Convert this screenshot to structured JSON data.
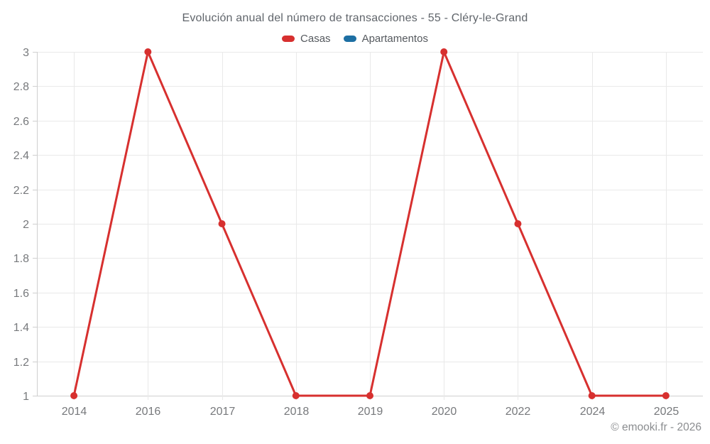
{
  "chart_data": {
    "type": "line",
    "title": "Evolución anual del número de transacciones - 55 - Cléry-le-Grand",
    "categories": [
      "2014",
      "2016",
      "2017",
      "2018",
      "2019",
      "2020",
      "2022",
      "2024",
      "2025"
    ],
    "series": [
      {
        "name": "Casas",
        "color": "#d7302f",
        "values": [
          1,
          3,
          2,
          1,
          1,
          3,
          2,
          1,
          1
        ]
      },
      {
        "name": "Apartamentos",
        "color": "#1d6fa3",
        "values": []
      }
    ],
    "ylim": [
      1,
      3
    ],
    "yticks": [
      {
        "v": 1,
        "label": "1"
      },
      {
        "v": 1.2,
        "label": "1.2"
      },
      {
        "v": 1.4,
        "label": "1.4"
      },
      {
        "v": 1.6,
        "label": "1.6"
      },
      {
        "v": 1.8,
        "label": "1.8"
      },
      {
        "v": 2,
        "label": "2"
      },
      {
        "v": 2.2,
        "label": "2.2"
      },
      {
        "v": 2.4,
        "label": "2.4"
      },
      {
        "v": 2.6,
        "label": "2.6"
      },
      {
        "v": 2.8,
        "label": "2.8"
      },
      {
        "v": 3,
        "label": "3"
      }
    ],
    "grid": true,
    "legend_position": "top",
    "copyright": "© emooki.fr - 2026"
  },
  "style_colors": {
    "gridline": "#e9e9e9",
    "axis": "#cfcfcf",
    "tick_text": "#77797c"
  }
}
